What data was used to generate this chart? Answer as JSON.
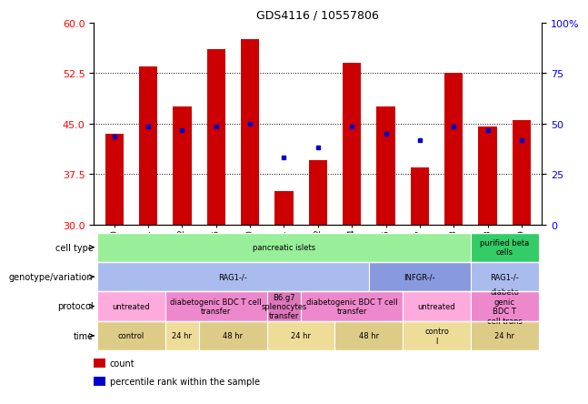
{
  "title": "GDS4116 / 10557806",
  "samples": [
    "GSM641880",
    "GSM641881",
    "GSM641882",
    "GSM641886",
    "GSM641890",
    "GSM641891",
    "GSM641892",
    "GSM641884",
    "GSM641885",
    "GSM641887",
    "GSM641888",
    "GSM641883",
    "GSM641889"
  ],
  "bar_heights": [
    43.5,
    53.5,
    47.5,
    56.0,
    57.5,
    35.0,
    39.5,
    54.0,
    47.5,
    38.5,
    52.5,
    44.5,
    45.5
  ],
  "dot_y": [
    43.0,
    44.5,
    44.0,
    44.5,
    45.0,
    40.0,
    41.5,
    44.5,
    43.5,
    42.5,
    44.5,
    44.0,
    42.5
  ],
  "ylim_left": [
    30,
    60
  ],
  "ylim_right": [
    0,
    100
  ],
  "yticks_left": [
    30,
    37.5,
    45,
    52.5,
    60
  ],
  "yticks_right": [
    0,
    25,
    50,
    75,
    100
  ],
  "bar_color": "#cc0000",
  "dot_color": "#0000cc",
  "bar_bottom": 30,
  "annotation_rows": [
    {
      "label": "cell type",
      "segments": [
        {
          "text": "pancreatic islets",
          "start": 0,
          "end": 11,
          "color": "#99ee99"
        },
        {
          "text": "purified beta\ncells",
          "start": 11,
          "end": 13,
          "color": "#33cc66"
        }
      ]
    },
    {
      "label": "genotype/variation",
      "segments": [
        {
          "text": "RAG1-/-",
          "start": 0,
          "end": 8,
          "color": "#aabbee"
        },
        {
          "text": "INFGR-/-",
          "start": 8,
          "end": 11,
          "color": "#8899dd"
        },
        {
          "text": "RAG1-/-",
          "start": 11,
          "end": 13,
          "color": "#aabbee"
        }
      ]
    },
    {
      "label": "protocol",
      "segments": [
        {
          "text": "untreated",
          "start": 0,
          "end": 2,
          "color": "#ffaadd"
        },
        {
          "text": "diabetogenic BDC T cell\ntransfer",
          "start": 2,
          "end": 5,
          "color": "#ee88cc"
        },
        {
          "text": "B6.g7\nsplenocytes\ntransfer",
          "start": 5,
          "end": 6,
          "color": "#dd77bb"
        },
        {
          "text": "diabetogenic BDC T cell\ntransfer",
          "start": 6,
          "end": 9,
          "color": "#ee88cc"
        },
        {
          "text": "untreated",
          "start": 9,
          "end": 11,
          "color": "#ffaadd"
        },
        {
          "text": "diabeto\ngenic\nBDC T\ncell trans",
          "start": 11,
          "end": 13,
          "color": "#ee88cc"
        }
      ]
    },
    {
      "label": "time",
      "segments": [
        {
          "text": "control",
          "start": 0,
          "end": 2,
          "color": "#ddcc88"
        },
        {
          "text": "24 hr",
          "start": 2,
          "end": 3,
          "color": "#eedd99"
        },
        {
          "text": "48 hr",
          "start": 3,
          "end": 5,
          "color": "#ddcc88"
        },
        {
          "text": "24 hr",
          "start": 5,
          "end": 7,
          "color": "#eedd99"
        },
        {
          "text": "48 hr",
          "start": 7,
          "end": 9,
          "color": "#ddcc88"
        },
        {
          "text": "contro\nl",
          "start": 9,
          "end": 11,
          "color": "#eedd99"
        },
        {
          "text": "24 hr",
          "start": 11,
          "end": 13,
          "color": "#ddcc88"
        }
      ]
    }
  ],
  "legend": [
    {
      "color": "#cc0000",
      "label": "count"
    },
    {
      "color": "#0000cc",
      "label": "percentile rank within the sample"
    }
  ]
}
